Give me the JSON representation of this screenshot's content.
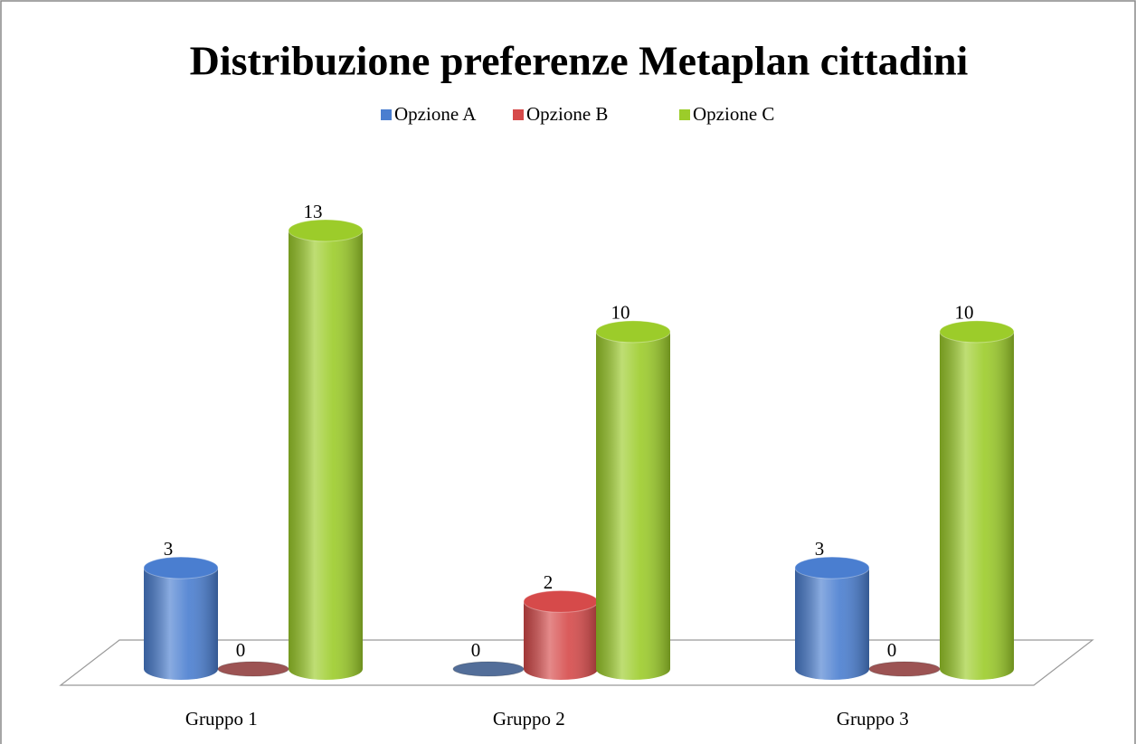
{
  "chart_data": {
    "type": "bar",
    "title": "Distribuzione preferenze Metaplan cittadini",
    "categories": [
      "Gruppo 1",
      "Gruppo 2",
      "Gruppo 3"
    ],
    "series": [
      {
        "name": "Opzione A",
        "color": "#4a7ed0",
        "values": [
          3,
          0,
          3
        ]
      },
      {
        "name": "Opzione B",
        "color": "#d64a4a",
        "values": [
          0,
          2,
          0
        ]
      },
      {
        "name": "Opzione C",
        "color": "#9ccc2a",
        "values": [
          13,
          10,
          10
        ]
      }
    ],
    "legend": "top"
  }
}
